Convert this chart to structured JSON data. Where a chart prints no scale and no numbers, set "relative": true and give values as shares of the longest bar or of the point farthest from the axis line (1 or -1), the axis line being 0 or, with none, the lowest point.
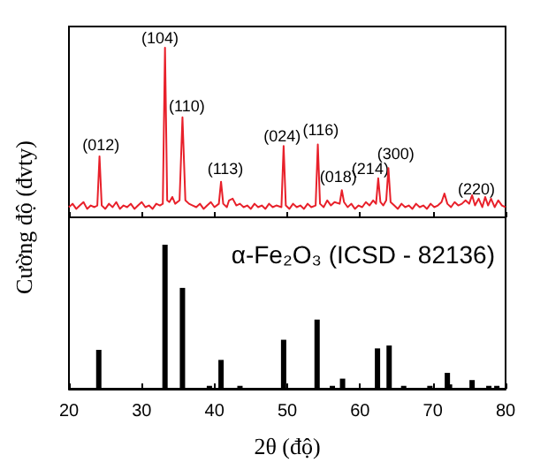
{
  "chart_data": [
    {
      "type": "line",
      "ylabel": "Cường độ (đvty)",
      "relative": true,
      "xlim": [
        20,
        80
      ],
      "xticks": [
        20,
        30,
        40,
        50,
        60,
        70,
        80
      ],
      "tick_labels": false,
      "marker": "none",
      "series": [
        {
          "color": "#e8202a",
          "x": [
            20,
            20.5,
            21,
            21.5,
            22,
            22.5,
            23,
            23.5,
            23.9,
            24.2,
            24.5,
            25,
            25.5,
            26,
            26.5,
            27,
            27.5,
            28,
            28.5,
            29,
            29.5,
            30,
            30.5,
            31,
            31.5,
            32,
            32.5,
            32.9,
            33.2,
            33.5,
            33.8,
            34.2,
            34.6,
            35.2,
            35.6,
            36.0,
            36.5,
            37,
            37.5,
            38,
            38.5,
            39,
            39.5,
            40,
            40.6,
            40.9,
            41.2,
            41.7,
            42,
            42.5,
            43,
            43.5,
            44,
            44.5,
            45,
            45.5,
            46,
            46.5,
            47,
            47.5,
            48,
            48.5,
            49.2,
            49.5,
            49.8,
            50.3,
            50.8,
            51.3,
            51.8,
            52.3,
            52.8,
            53.3,
            53.9,
            54.2,
            54.5,
            55,
            55.5,
            56,
            56.5,
            57.2,
            57.5,
            57.8,
            58.3,
            58.8,
            59.3,
            59.8,
            60.3,
            60.8,
            61.3,
            61.8,
            62.2,
            62.5,
            62.8,
            63.2,
            63.6,
            63.9,
            64.2,
            64.7,
            65.2,
            65.7,
            66.2,
            66.7,
            67.2,
            67.7,
            68.2,
            68.7,
            69.2,
            69.7,
            70.2,
            70.7,
            71.2,
            71.6,
            72,
            72.5,
            73,
            73.5,
            74,
            74.5,
            75,
            75.4,
            75.8,
            76.3,
            76.8,
            77.2,
            77.6,
            78,
            78.5,
            79,
            79.5,
            80
          ],
          "values": [
            0.06,
            0.08,
            0.05,
            0.07,
            0.09,
            0.05,
            0.07,
            0.06,
            0.07,
            0.36,
            0.07,
            0.05,
            0.08,
            0.06,
            0.09,
            0.05,
            0.07,
            0.06,
            0.08,
            0.05,
            0.07,
            0.09,
            0.06,
            0.07,
            0.05,
            0.08,
            0.07,
            0.08,
            1.0,
            0.1,
            0.09,
            0.12,
            0.08,
            0.1,
            0.59,
            0.1,
            0.08,
            0.07,
            0.06,
            0.08,
            0.05,
            0.07,
            0.09,
            0.06,
            0.08,
            0.21,
            0.08,
            0.06,
            0.1,
            0.11,
            0.07,
            0.08,
            0.06,
            0.07,
            0.05,
            0.08,
            0.06,
            0.07,
            0.05,
            0.08,
            0.06,
            0.07,
            0.06,
            0.42,
            0.07,
            0.05,
            0.08,
            0.06,
            0.07,
            0.05,
            0.08,
            0.06,
            0.07,
            0.43,
            0.08,
            0.06,
            0.1,
            0.07,
            0.09,
            0.08,
            0.16,
            0.09,
            0.06,
            0.08,
            0.05,
            0.07,
            0.06,
            0.09,
            0.07,
            0.1,
            0.08,
            0.23,
            0.09,
            0.07,
            0.1,
            0.29,
            0.09,
            0.07,
            0.05,
            0.08,
            0.06,
            0.07,
            0.05,
            0.08,
            0.06,
            0.07,
            0.05,
            0.08,
            0.06,
            0.07,
            0.09,
            0.14,
            0.08,
            0.06,
            0.09,
            0.07,
            0.08,
            0.1,
            0.08,
            0.13,
            0.07,
            0.11,
            0.06,
            0.12,
            0.07,
            0.11,
            0.06,
            0.1,
            0.07,
            0.06
          ]
        }
      ],
      "annotations": [
        {
          "text": "(012)",
          "x": 24.4,
          "y": 0.37
        },
        {
          "text": "(104)",
          "x": 32.5,
          "y": 1.0
        },
        {
          "text": "(110)",
          "x": 36.2,
          "y": 0.6
        },
        {
          "text": "(113)",
          "x": 41.5,
          "y": 0.23
        },
        {
          "text": "(024)",
          "x": 49.3,
          "y": 0.42
        },
        {
          "text": "(116)",
          "x": 54.6,
          "y": 0.46
        },
        {
          "text": "(018)",
          "x": 57.0,
          "y": 0.18
        },
        {
          "text": "(214)",
          "x": 61.4,
          "y": 0.23
        },
        {
          "text": "(300)",
          "x": 64.9,
          "y": 0.32
        },
        {
          "text": "(220)",
          "x": 76.0,
          "y": 0.11
        }
      ]
    },
    {
      "type": "bar",
      "xlabel": "2θ (độ)",
      "relative": true,
      "xlim": [
        20,
        80
      ],
      "xticks": [
        20,
        30,
        40,
        50,
        60,
        70,
        80
      ],
      "tick_labels": "x",
      "series": [
        {
          "color": "#000000",
          "x": [
            24.1,
            33.2,
            35.6,
            39.3,
            40.9,
            43.5,
            49.5,
            54.1,
            56.2,
            57.6,
            62.4,
            64.0,
            66.0,
            69.6,
            72.0,
            72.3,
            75.4,
            77.7,
            78.8
          ],
          "values": [
            0.27,
            1,
            0.7,
            0.02,
            0.2,
            0.02,
            0.34,
            0.48,
            0.02,
            0.07,
            0.28,
            0.3,
            0.02,
            0.02,
            0.11,
            0.03,
            0.06,
            0.02,
            0.02
          ]
        }
      ],
      "annotations": [
        "α-Fe₂O₃ (ICSD - 82136)"
      ]
    }
  ]
}
